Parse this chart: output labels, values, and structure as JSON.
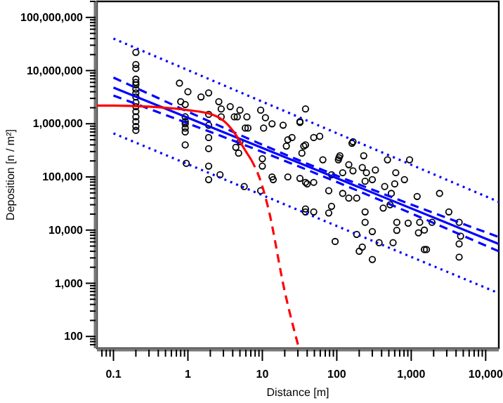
{
  "chart_data": {
    "type": "scatter",
    "xlabel": "Distance [m]",
    "ylabel": "Deposition [n / m²]",
    "log": "xy",
    "grid": false,
    "xlim": [
      0.06,
      15000
    ],
    "ylim": [
      60,
      200000000
    ],
    "xticks": [
      {
        "value": 0.07,
        "label": null
      },
      {
        "value": 0.08,
        "label": null
      },
      {
        "value": 0.09,
        "label": null
      },
      {
        "value": 0.1,
        "label": "0.1"
      },
      {
        "value": 0.2,
        "label": null
      },
      {
        "value": 0.3,
        "label": null
      },
      {
        "value": 0.4,
        "label": null
      },
      {
        "value": 0.5,
        "label": null
      },
      {
        "value": 0.6,
        "label": null
      },
      {
        "value": 0.7,
        "label": null
      },
      {
        "value": 0.8,
        "label": null
      },
      {
        "value": 0.9,
        "label": null
      },
      1,
      {
        "value": 2,
        "label": null
      },
      {
        "value": 3,
        "label": null
      },
      {
        "value": 4,
        "label": null
      },
      {
        "value": 5,
        "label": null
      },
      {
        "value": 6,
        "label": null
      },
      {
        "value": 7,
        "label": null
      },
      {
        "value": 8,
        "label": null
      },
      {
        "value": 9,
        "label": null
      },
      10,
      {
        "value": 20,
        "label": null
      },
      {
        "value": 30,
        "label": null
      },
      {
        "value": 40,
        "label": null
      },
      {
        "value": 50,
        "label": null
      },
      {
        "value": 60,
        "label": null
      },
      {
        "value": 70,
        "label": null
      },
      {
        "value": 80,
        "label": null
      },
      {
        "value": 90,
        "label": null
      },
      100,
      {
        "value": 200,
        "label": null
      },
      {
        "value": 300,
        "label": null
      },
      {
        "value": 400,
        "label": null
      },
      {
        "value": 500,
        "label": null
      },
      {
        "value": 600,
        "label": null
      },
      {
        "value": 700,
        "label": null
      },
      {
        "value": 800,
        "label": null
      },
      {
        "value": 900,
        "label": null
      },
      {
        "value": 1000,
        "label": "1,000"
      },
      {
        "value": 2000,
        "label": null
      },
      {
        "value": 3000,
        "label": null
      },
      {
        "value": 4000,
        "label": null
      },
      {
        "value": 5000,
        "label": null
      },
      {
        "value": 6000,
        "label": null
      },
      {
        "value": 7000,
        "label": null
      },
      {
        "value": 8000,
        "label": null
      },
      {
        "value": 9000,
        "label": null
      },
      {
        "value": 10000,
        "label": "10,000"
      }
    ],
    "yticks": [
      {
        "value": 70,
        "label": null
      },
      {
        "value": 80,
        "label": null
      },
      {
        "value": 90,
        "label": null
      },
      100,
      {
        "value": 200,
        "label": null
      },
      {
        "value": 300,
        "label": null
      },
      {
        "value": 400,
        "label": null
      },
      {
        "value": 500,
        "label": null
      },
      {
        "value": 600,
        "label": null
      },
      {
        "value": 700,
        "label": null
      },
      {
        "value": 800,
        "label": null
      },
      {
        "value": 900,
        "label": null
      },
      {
        "value": 1000,
        "label": "1,000"
      },
      {
        "value": 2000,
        "label": null
      },
      {
        "value": 3000,
        "label": null
      },
      {
        "value": 4000,
        "label": null
      },
      {
        "value": 5000,
        "label": null
      },
      {
        "value": 6000,
        "label": null
      },
      {
        "value": 7000,
        "label": null
      },
      {
        "value": 8000,
        "label": null
      },
      {
        "value": 9000,
        "label": null
      },
      {
        "value": 10000,
        "label": "10,000"
      },
      {
        "value": 20000,
        "label": null
      },
      {
        "value": 30000,
        "label": null
      },
      {
        "value": 40000,
        "label": null
      },
      {
        "value": 50000,
        "label": null
      },
      {
        "value": 60000,
        "label": null
      },
      {
        "value": 70000,
        "label": null
      },
      {
        "value": 80000,
        "label": null
      },
      {
        "value": 90000,
        "label": null
      },
      {
        "value": 100000,
        "label": "100,000"
      },
      {
        "value": 200000,
        "label": null
      },
      {
        "value": 300000,
        "label": null
      },
      {
        "value": 400000,
        "label": null
      },
      {
        "value": 500000,
        "label": null
      },
      {
        "value": 600000,
        "label": null
      },
      {
        "value": 700000,
        "label": null
      },
      {
        "value": 800000,
        "label": null
      },
      {
        "value": 900000,
        "label": null
      },
      {
        "value": 1000000,
        "label": "1,000,000"
      },
      {
        "value": 2000000,
        "label": null
      },
      {
        "value": 3000000,
        "label": null
      },
      {
        "value": 4000000,
        "label": null
      },
      {
        "value": 5000000,
        "label": null
      },
      {
        "value": 6000000,
        "label": null
      },
      {
        "value": 7000000,
        "label": null
      },
      {
        "value": 8000000,
        "label": null
      },
      {
        "value": 9000000,
        "label": null
      },
      {
        "value": 10000000,
        "label": "10,000,000"
      },
      {
        "value": 20000000,
        "label": null
      },
      {
        "value": 30000000,
        "label": null
      },
      {
        "value": 40000000,
        "label": null
      },
      {
        "value": 50000000,
        "label": null
      },
      {
        "value": 60000000,
        "label": null
      },
      {
        "value": 70000000,
        "label": null
      },
      {
        "value": 80000000,
        "label": null
      },
      {
        "value": 90000000,
        "label": null
      },
      {
        "value": 100000000,
        "label": "100,000,000"
      },
      {
        "value": 200000000,
        "label": null
      }
    ],
    "series": [
      {
        "marker": "circle",
        "color": "#000000",
        "x": [
          0.2,
          0.2,
          0.2,
          0.2,
          0.2,
          0.2,
          0.2,
          0.2,
          0.2,
          0.2,
          0.2,
          0.2,
          0.2,
          0.2,
          0.2,
          0.2,
          0.77,
          1,
          0.8,
          0.92,
          0.92,
          0.92,
          0.92,
          0.92,
          0.92,
          0.92,
          0.95,
          1.5,
          1.9,
          1.9,
          1.9,
          1.9,
          1.9,
          1.9,
          1.9,
          2.6,
          2.8,
          2.8,
          3.7,
          4.2,
          4.6,
          5,
          6.2,
          5.9,
          6.4,
          5,
          4.4,
          4.8,
          2.7,
          5.7,
          9.5,
          11,
          10.4,
          10,
          10,
          13.5,
          14,
          22,
          32,
          38,
          19,
          13.5,
          25,
          21,
          32,
          38,
          34,
          9.5,
          38,
          38,
          32,
          22,
          36,
          49,
          59,
          40,
          49,
          38,
          49,
          65,
          105,
          110,
          160,
          145,
          165,
          120,
          85,
          78,
          120,
          145,
          85,
          78,
          230,
          220,
          250,
          330,
          300,
          240,
          185,
          240,
          240,
          300,
          185,
          220,
          95,
          480,
          620,
          600,
          440,
          540,
          520,
          420,
          640,
          570,
          810,
          910,
          950,
          1200,
          1300,
          1250,
          1500,
          1500,
          2400,
          3200,
          4400,
          4600,
          4400,
          4400,
          200,
          300,
          370,
          1900,
          640,
          1600,
          165,
          107
        ],
        "values": [
          22000000,
          13000000,
          11000000,
          6900000,
          6000000,
          5400000,
          4500000,
          3800000,
          3200000,
          2500000,
          2100000,
          1700000,
          1350000,
          1100000,
          890000,
          750000,
          5800000,
          4000000,
          2600000,
          2300000,
          1350000,
          1100000,
          1000000,
          830000,
          700000,
          400000,
          180000,
          3200000,
          3800000,
          1500000,
          940000,
          550000,
          340000,
          160000,
          89000,
          2600000,
          1900000,
          1350000,
          2100000,
          1350000,
          1350000,
          1800000,
          1350000,
          830000,
          830000,
          460000,
          360000,
          280000,
          110000,
          66000,
          1800000,
          1300000,
          830000,
          220000,
          160000,
          100000,
          89000,
          100000,
          94000,
          79000,
          940000,
          1000000,
          550000,
          380000,
          1060000,
          400000,
          280000,
          55000,
          25000,
          1900000,
          1100000,
          500000,
          380000,
          550000,
          580000,
          74000,
          79000,
          22000,
          22000,
          210000,
          210000,
          250000,
          430000,
          170000,
          130000,
          120000,
          110000,
          55000,
          49000,
          40000,
          28000,
          21000,
          250000,
          150000,
          120000,
          135000,
          89000,
          83000,
          40000,
          22000,
          14000,
          9400,
          8300,
          4800,
          6100,
          210000,
          120000,
          74000,
          66000,
          49000,
          30000,
          26000,
          14000,
          5800,
          89000,
          13500,
          210000,
          43000,
          14000,
          8900,
          4300,
          10000,
          49000,
          22000,
          14000,
          7700,
          5500,
          3100,
          4000,
          2800,
          5800,
          14000,
          9900,
          4300,
          460000,
          230000
        ]
      },
      {
        "type": "line",
        "line_style": "solid",
        "color": "#0000ff",
        "x": [
          0.1,
          15000
        ],
        "values": [
          4800000,
          5500
        ]
      },
      {
        "type": "line",
        "line_style": "dashed",
        "color": "#0000ff",
        "x": [
          0.1,
          30,
          15000
        ],
        "values": [
          7400000,
          210000,
          7400
        ]
      },
      {
        "type": "line",
        "line_style": "dashed",
        "color": "#0000ff",
        "x": [
          0.1,
          30,
          15000
        ],
        "values": [
          3400000,
          160000,
          4000
        ]
      },
      {
        "type": "line",
        "line_style": "dotted",
        "color": "#0000ff",
        "x": [
          0.1,
          15000
        ],
        "values": [
          40000000,
          34000
        ]
      },
      {
        "type": "line",
        "line_style": "dotted",
        "color": "#0000ff",
        "x": [
          0.1,
          15000
        ],
        "values": [
          660000,
          650
        ]
      },
      {
        "type": "line",
        "line_style": "solid",
        "color": "#ff0000",
        "x": [
          0.06,
          0.1,
          0.3,
          1,
          2.1,
          3.2,
          4.4,
          5.7,
          7.1
        ],
        "values": [
          2200000,
          2200000,
          2100000,
          1800000,
          1500000,
          1060000,
          620000,
          340000,
          210000
        ]
      },
      {
        "type": "line",
        "line_style": "dashed",
        "color": "#ff0000",
        "x": [
          7.1,
          9.5,
          12,
          20,
          31
        ],
        "values": [
          210000,
          83000,
          26000,
          700,
          60
        ]
      }
    ]
  }
}
